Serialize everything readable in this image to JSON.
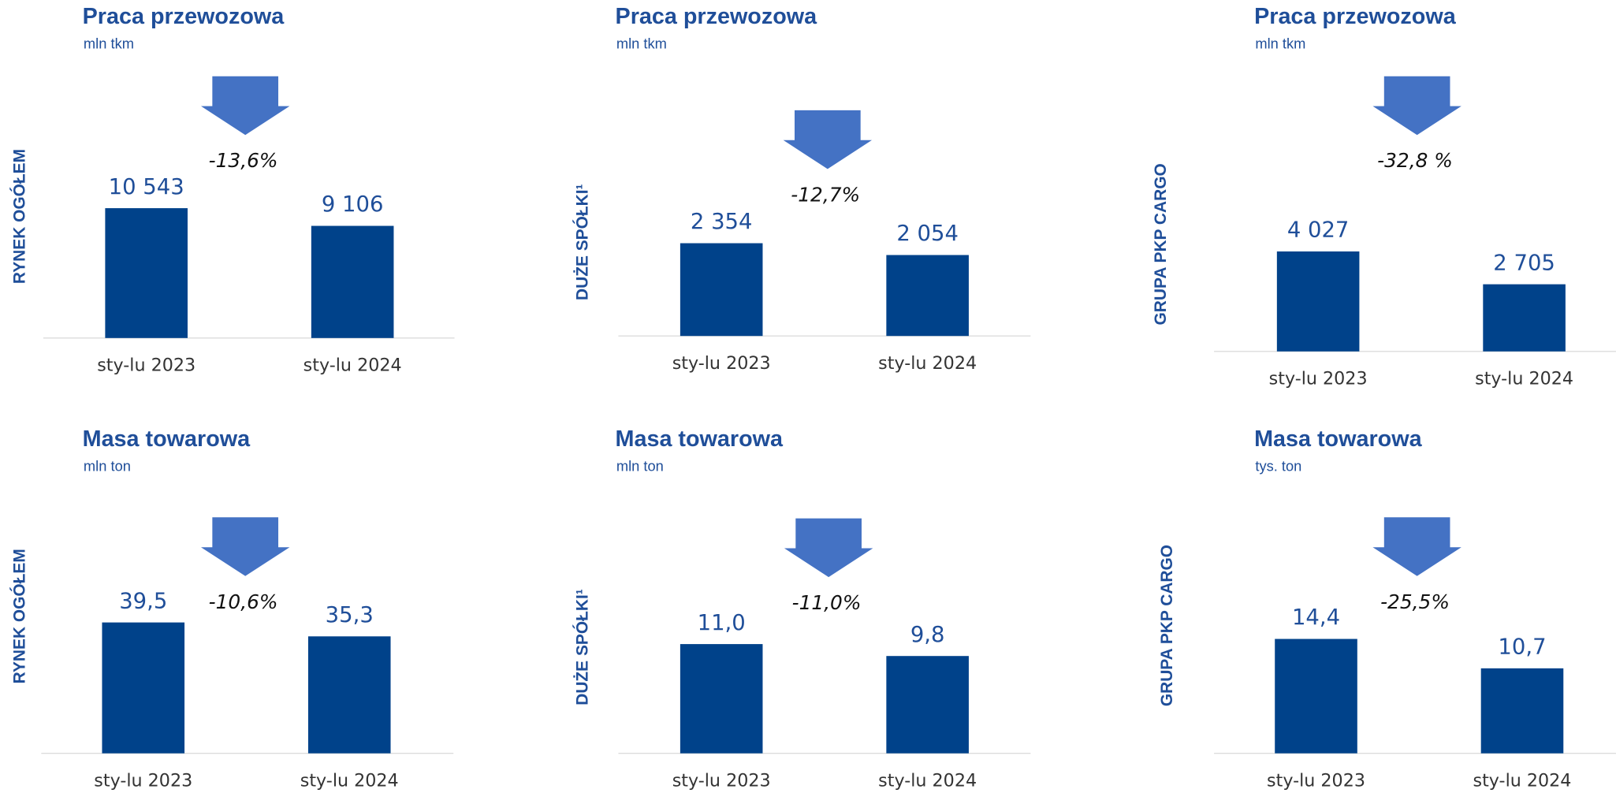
{
  "chart_data": [
    {
      "type": "bar",
      "title": "Praca przewozowa",
      "subtitle": "mln tkm",
      "y_label": "RYNEK OGÓŁEM",
      "categories": [
        "sty-lu 2023",
        "sty-lu 2024"
      ],
      "values": [
        10543,
        9106
      ],
      "value_labels": [
        "10 543",
        "9 106"
      ],
      "color": "#00428a",
      "annotation": "-13,6%"
    },
    {
      "type": "bar",
      "title": "Praca przewozowa",
      "subtitle": "mln tkm",
      "y_label": "DUŻE SPÓŁKI¹",
      "categories": [
        "sty-lu 2023",
        "sty-lu 2024"
      ],
      "values": [
        2354,
        2054
      ],
      "value_labels": [
        "2 354",
        "2 054"
      ],
      "color": "#00428a",
      "annotation": "-12,7%"
    },
    {
      "type": "bar",
      "title": "Praca przewozowa",
      "subtitle": "mln tkm",
      "y_label": "GRUPA PKP CARGO",
      "categories": [
        "sty-lu 2023",
        "sty-lu 2024"
      ],
      "values": [
        4027,
        2705
      ],
      "value_labels": [
        "4 027",
        "2 705"
      ],
      "color": "#00428a",
      "annotation": "-32,8 %"
    },
    {
      "type": "bar",
      "title": "Masa towarowa",
      "subtitle": "mln ton",
      "y_label": "RYNEK  OGÓŁEM",
      "categories": [
        "sty-lu 2023",
        "sty-lu 2024"
      ],
      "values": [
        39.5,
        35.3
      ],
      "value_labels": [
        "39,5",
        "35,3"
      ],
      "color": "#00428a",
      "annotation": "-10,6%"
    },
    {
      "type": "bar",
      "title": "Masa towarowa",
      "subtitle": "mln ton",
      "y_label": "DUŻE SPÓŁKI¹",
      "categories": [
        "sty-lu 2023",
        "sty-lu 2024"
      ],
      "values": [
        11.0,
        9.8
      ],
      "value_labels": [
        "11,0",
        "9,8"
      ],
      "color": "#00428a",
      "annotation": "-11,0%"
    },
    {
      "type": "bar",
      "title": "Masa towarowa",
      "subtitle": "tys. ton",
      "y_label": "GRUPA PKP CARGO",
      "categories": [
        "sty-lu 2023",
        "sty-lu 2024"
      ],
      "values": [
        14.4,
        10.7
      ],
      "value_labels": [
        "14,4",
        "10,7"
      ],
      "color": "#00428a",
      "annotation": "-25,5%"
    }
  ]
}
